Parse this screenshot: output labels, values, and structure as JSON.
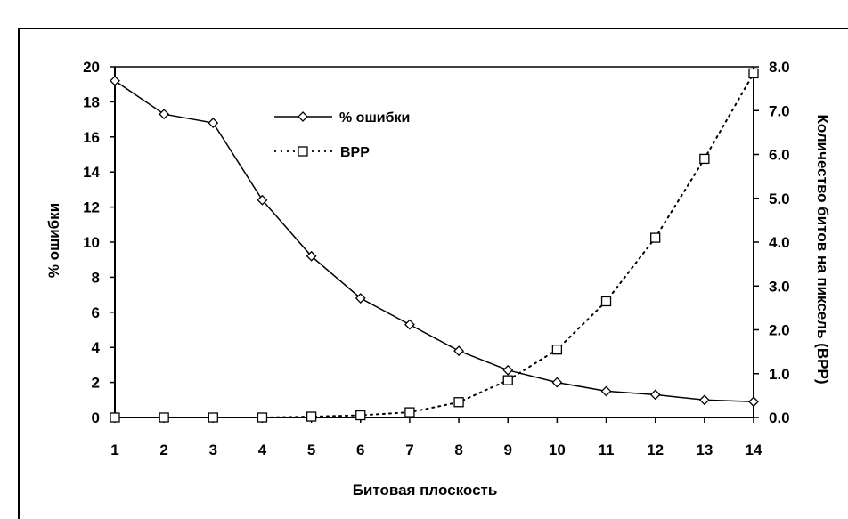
{
  "chart_data": {
    "type": "line",
    "xlabel": "Битовая плоскость",
    "ylabel_left": "% ошибки",
    "ylabel_right": "Количество битов на пиксель (BPP)",
    "categories": [
      1,
      2,
      3,
      4,
      5,
      6,
      7,
      8,
      9,
      10,
      11,
      12,
      13,
      14
    ],
    "ylim_left": [
      0,
      20
    ],
    "yticks_left": [
      "0",
      "2",
      "4",
      "6",
      "8",
      "10",
      "12",
      "14",
      "16",
      "18",
      "20"
    ],
    "ylim_right": [
      0,
      8
    ],
    "yticks_right": [
      "0.0",
      "1.0",
      "2.0",
      "3.0",
      "4.0",
      "5.0",
      "6.0",
      "7.0",
      "8.0"
    ],
    "grid": false,
    "legend_position": "top-left",
    "series": [
      {
        "name": "% ошибки",
        "axis": "left",
        "marker": "diamond",
        "line": "solid",
        "values": [
          19.2,
          17.3,
          16.8,
          12.4,
          9.2,
          6.8,
          5.3,
          3.8,
          2.7,
          2.0,
          1.5,
          1.3,
          1.0,
          0.9
        ]
      },
      {
        "name": "BPP",
        "axis": "right",
        "marker": "square",
        "line": "dotted",
        "values": [
          0.0,
          0.0,
          0.0,
          0.0,
          0.02,
          0.05,
          0.12,
          0.35,
          0.85,
          1.55,
          2.65,
          4.1,
          5.9,
          7.85
        ]
      }
    ]
  }
}
